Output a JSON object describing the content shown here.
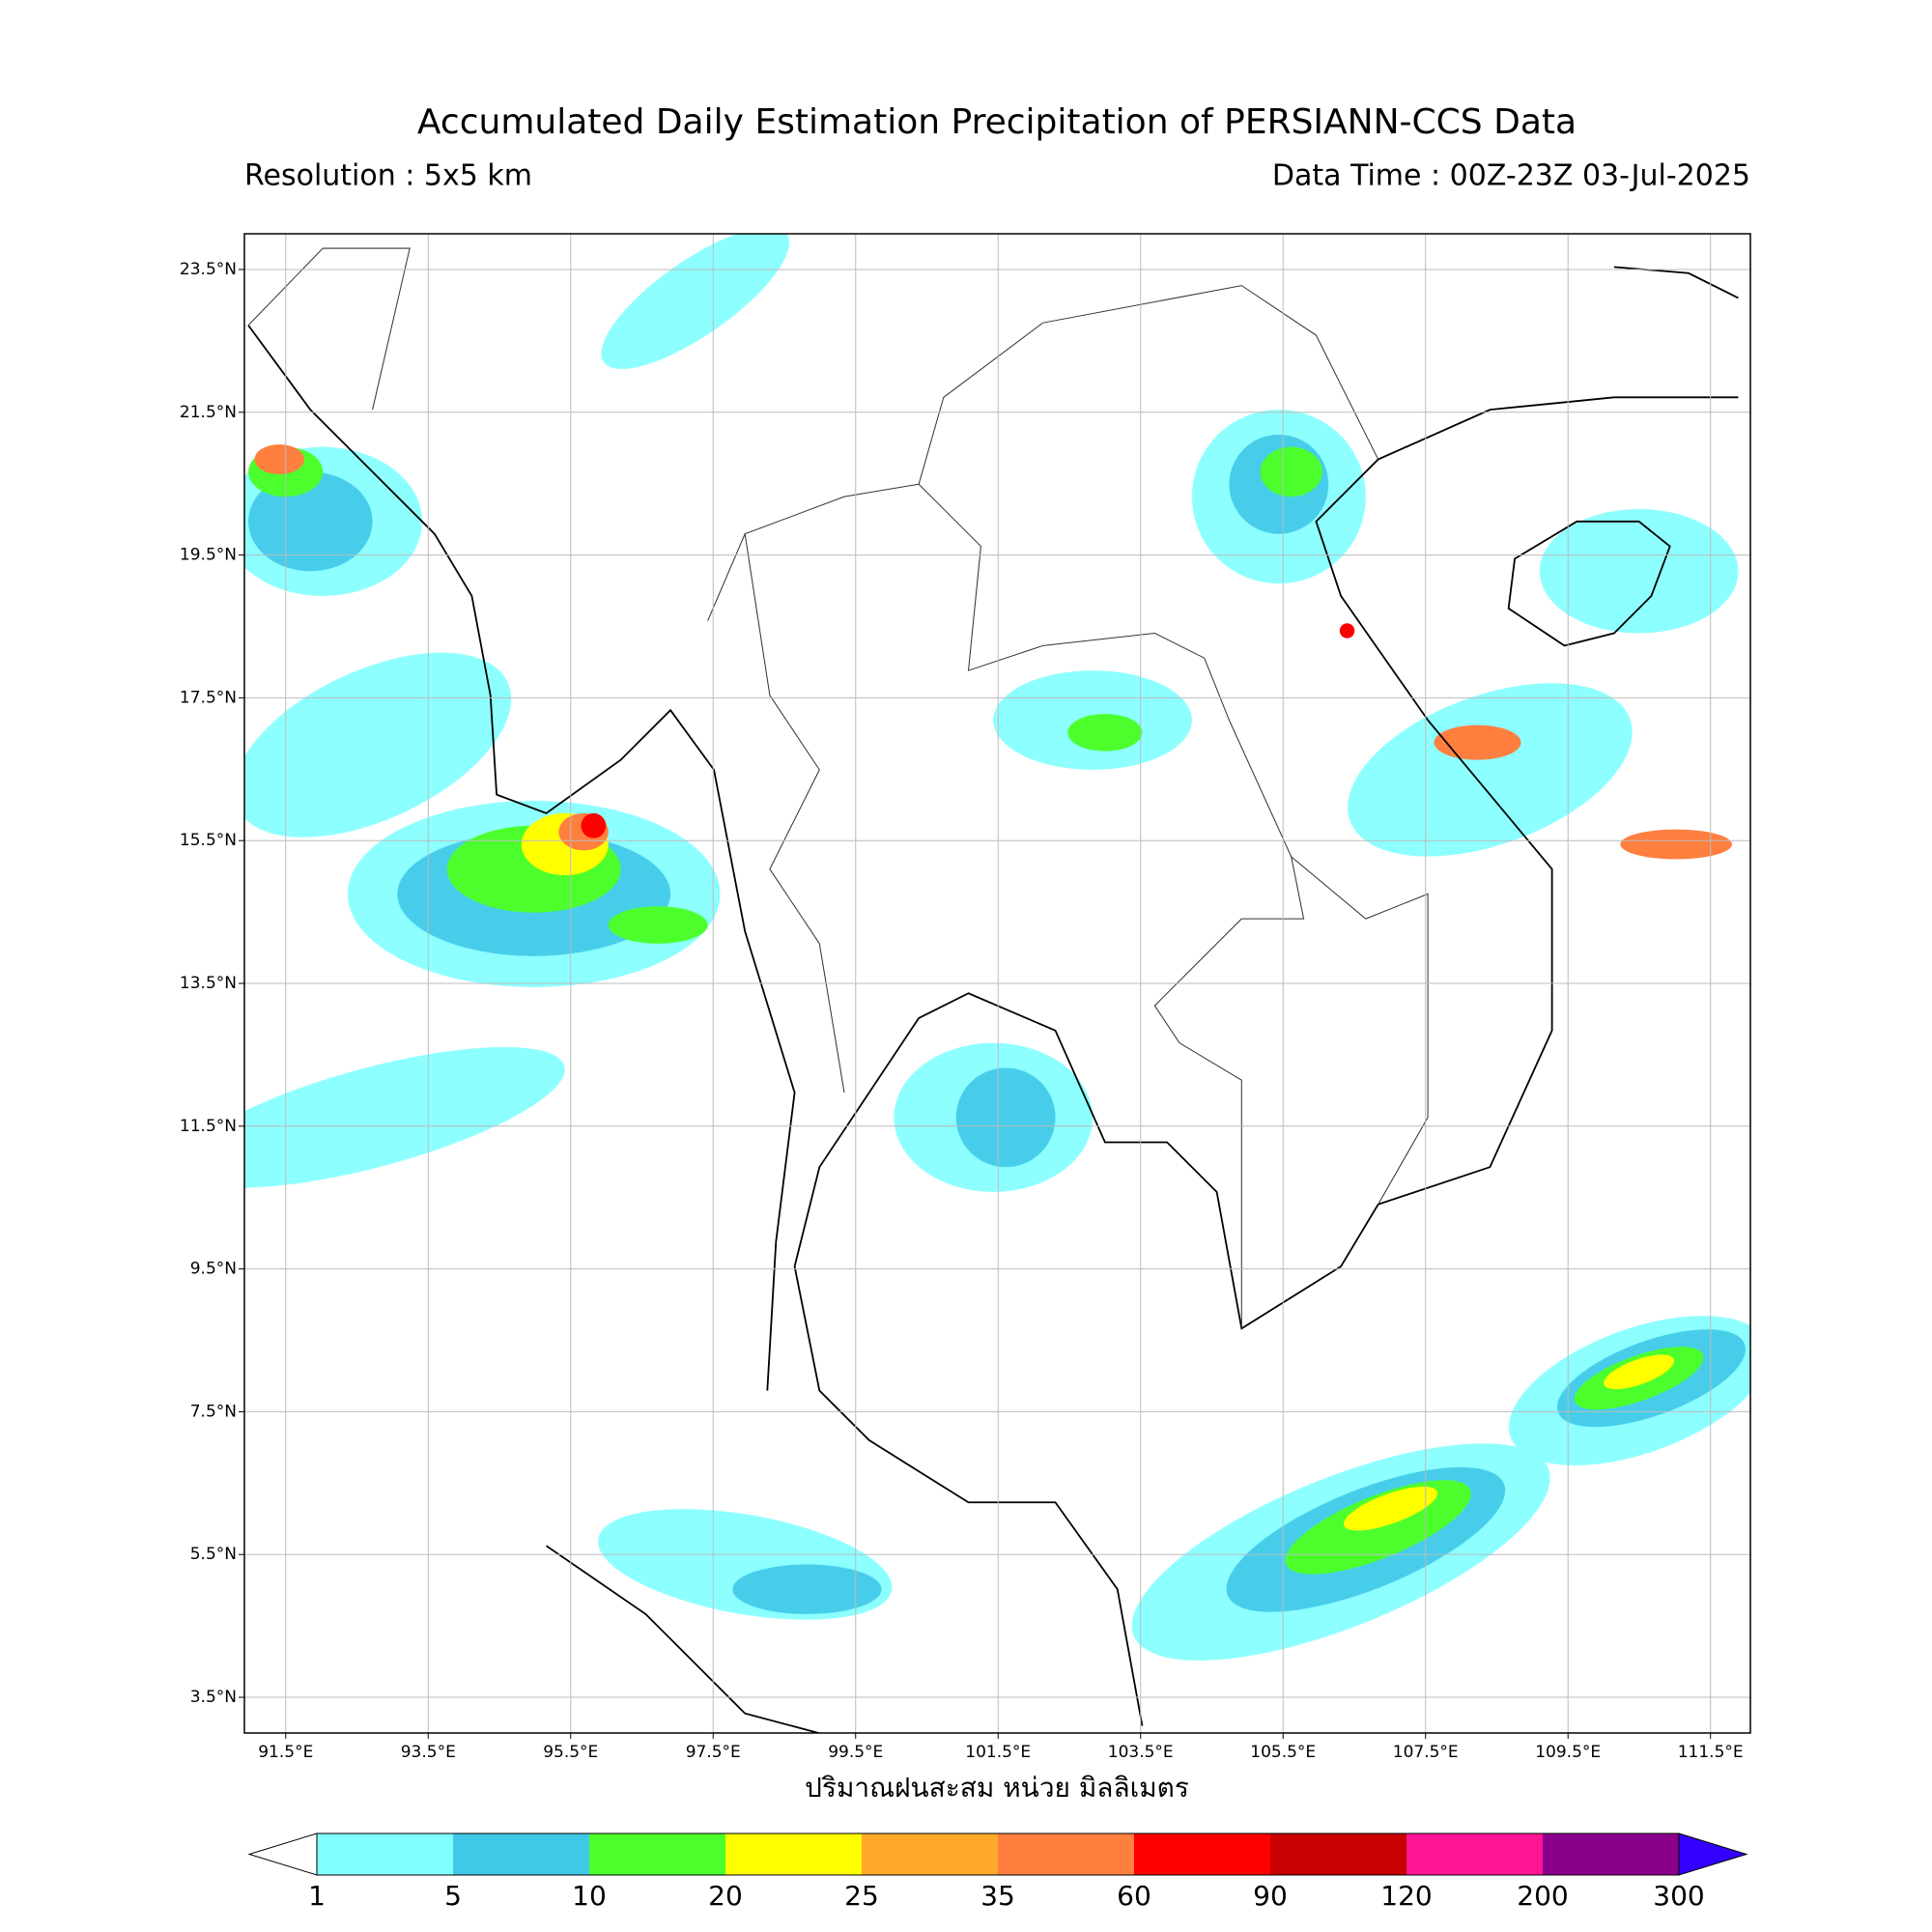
{
  "title": "Accumulated Daily Estimation Precipitation of PERSIANN-CCS Data",
  "subtitle_left": "Resolution : 5x5 km",
  "subtitle_right": "Data Time : 00Z-23Z 03-Jul-2025",
  "map": {
    "xlabel": "ปริมาณฝนสะสม หน่วย มิลลิเมตร",
    "xlim": [
      90.92,
      112.06
    ],
    "ylim": [
      3.0,
      24.0
    ],
    "grid": true,
    "xticks": [
      {
        "value": 91.5,
        "label": "91.5°E"
      },
      {
        "value": 93.5,
        "label": "93.5°E"
      },
      {
        "value": 95.5,
        "label": "95.5°E"
      },
      {
        "value": 97.5,
        "label": "97.5°E"
      },
      {
        "value": 99.5,
        "label": "99.5°E"
      },
      {
        "value": 101.5,
        "label": "101.5°E"
      },
      {
        "value": 103.5,
        "label": "103.5°E"
      },
      {
        "value": 105.5,
        "label": "105.5°E"
      },
      {
        "value": 107.5,
        "label": "107.5°E"
      },
      {
        "value": 109.5,
        "label": "109.5°E"
      },
      {
        "value": 111.5,
        "label": "111.5°E"
      }
    ],
    "yticks": [
      {
        "value": 23.5,
        "label": "23.5°N"
      },
      {
        "value": 21.5,
        "label": "21.5°N"
      },
      {
        "value": 19.5,
        "label": "19.5°N"
      },
      {
        "value": 17.5,
        "label": "17.5°N"
      },
      {
        "value": 15.5,
        "label": "15.5°N"
      },
      {
        "value": 13.5,
        "label": "13.5°N"
      },
      {
        "value": 11.5,
        "label": "11.5°N"
      },
      {
        "value": 9.5,
        "label": "9.5°N"
      },
      {
        "value": 7.5,
        "label": "7.5°N"
      },
      {
        "value": 5.5,
        "label": "5.5°N"
      },
      {
        "value": 3.5,
        "label": "3.5°N"
      }
    ]
  },
  "colorbar": {
    "levels": [
      1,
      5,
      10,
      20,
      25,
      35,
      60,
      90,
      120,
      200,
      300
    ],
    "colors": [
      "#80ffff",
      "#40c8e8",
      "#4cff2c",
      "#ffff00",
      "#ffa82a",
      "#ff7f3f",
      "#ff0000",
      "#c80000",
      "#ff1493",
      "#8b008b"
    ],
    "under_color": "#ffffff",
    "over_color": "#3300ff"
  }
}
